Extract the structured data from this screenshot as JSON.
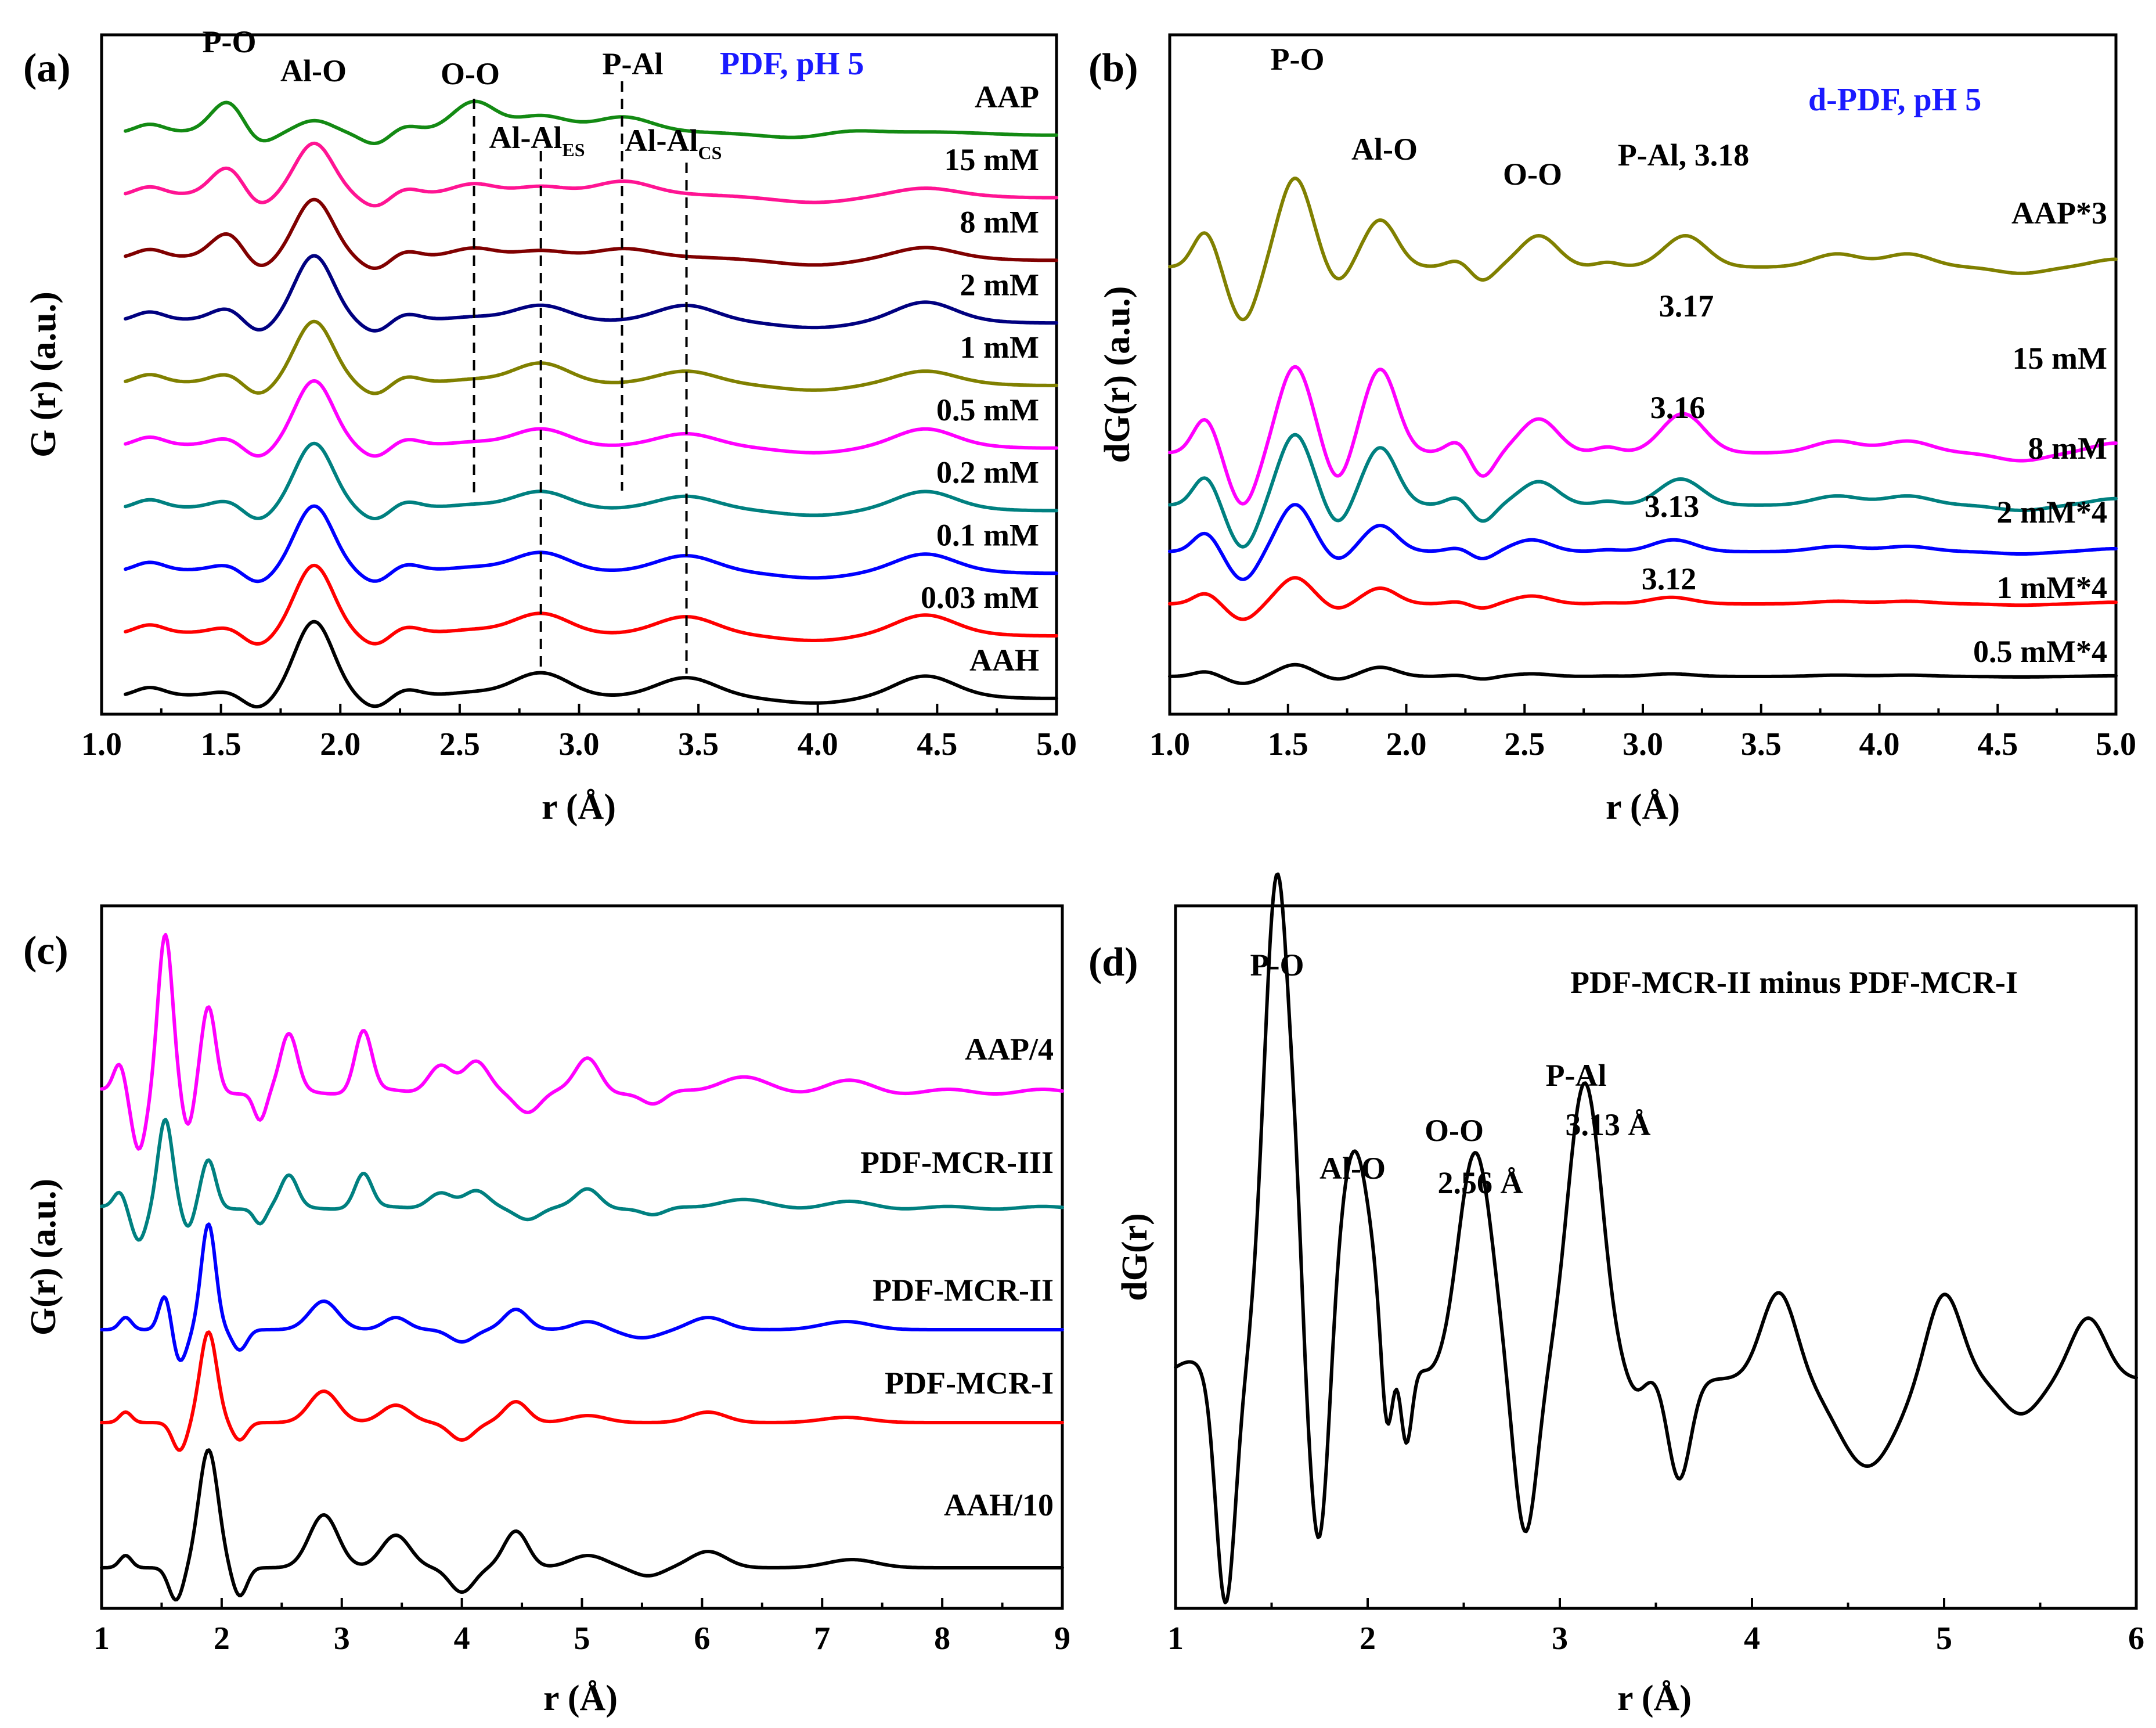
{
  "chart_data": [
    {
      "type": "line",
      "panel": "(a)",
      "title": "PDF, pH 5",
      "xlabel": "r (Å)",
      "ylabel": "G (r) (a.u.)",
      "xlim": [
        1.0,
        5.0
      ],
      "xticks": [
        "1.0",
        "1.5",
        "2.0",
        "2.5",
        "3.0",
        "3.5",
        "4.0",
        "4.5",
        "5.0"
      ],
      "peak_labels": [
        {
          "text": "P-O",
          "r": 1.53
        },
        {
          "text": "Al-O",
          "r": 1.89
        },
        {
          "text": "O-O",
          "r": 2.56
        },
        {
          "text": "P-Al",
          "r": 3.18
        },
        {
          "text": "Al-Al",
          "sub": "ES",
          "r": 2.84
        },
        {
          "text": "Al-Al",
          "sub": "CS",
          "r": 3.45
        }
      ],
      "dashed_lines_r": [
        2.56,
        2.84,
        3.18,
        3.45
      ],
      "series": [
        {
          "name": "AAP",
          "color": "#138a13",
          "amp": [
            1.0,
            0.45,
            0.95,
            0.6,
            0.5,
            0.2
          ],
          "peaks": [
            1.53,
            1.89,
            2.56,
            2.84,
            3.18,
            4.1
          ]
        },
        {
          "name": "15 mM",
          "color": "#ff1493",
          "amp": [
            0.9,
            1.7,
            0.35,
            0.35,
            0.45,
            0.2
          ],
          "peaks": [
            1.53,
            1.89,
            2.56,
            2.84,
            3.18,
            4.45
          ]
        },
        {
          "name": "8 mM",
          "color": "#800000",
          "amp": [
            0.8,
            1.9,
            0.3,
            0.3,
            0.3,
            0.3
          ],
          "peaks": [
            1.53,
            1.89,
            2.56,
            2.84,
            3.18,
            4.45
          ]
        },
        {
          "name": "2 mM",
          "color": "#000080",
          "amp": [
            0.4,
            2.1,
            0.1,
            0.55,
            0.45,
            0.55
          ],
          "peaks": [
            1.53,
            1.89,
            2.56,
            2.84,
            3.45,
            4.45
          ]
        },
        {
          "name": "1 mM",
          "color": "#808000",
          "amp": [
            0.3,
            2.0,
            0.1,
            0.7,
            0.35,
            0.35
          ],
          "peaks": [
            1.53,
            1.89,
            2.56,
            2.84,
            3.45,
            4.45
          ]
        },
        {
          "name": "0.5 mM",
          "color": "#ff00ff",
          "amp": [
            0.25,
            2.1,
            0.1,
            0.6,
            0.35,
            0.5
          ],
          "peaks": [
            1.53,
            1.89,
            2.56,
            2.84,
            3.45,
            4.45
          ]
        },
        {
          "name": "0.2 mM",
          "color": "#008080",
          "amp": [
            0.25,
            2.1,
            0.1,
            0.6,
            0.35,
            0.5
          ],
          "peaks": [
            1.53,
            1.89,
            2.56,
            2.84,
            3.45,
            4.45
          ]
        },
        {
          "name": "0.1 mM",
          "color": "#0000ff",
          "amp": [
            0.2,
            2.1,
            0.1,
            0.65,
            0.45,
            0.5
          ],
          "peaks": [
            1.53,
            1.89,
            2.56,
            2.84,
            3.45,
            4.45
          ]
        },
        {
          "name": "0.03 mM",
          "color": "#ff0000",
          "amp": [
            0.2,
            2.2,
            0.1,
            0.7,
            0.5,
            0.55
          ],
          "peaks": [
            1.53,
            1.89,
            2.56,
            2.84,
            3.45,
            4.45
          ]
        },
        {
          "name": "AAH",
          "color": "#000000",
          "amp": [
            0.15,
            2.4,
            0.1,
            0.8,
            0.55,
            0.6
          ],
          "peaks": [
            1.53,
            1.89,
            2.56,
            2.84,
            3.45,
            4.45
          ]
        }
      ],
      "series_label_suffix": [
        "",
        "",
        "",
        "",
        "",
        "",
        "",
        "",
        "",
        ""
      ]
    },
    {
      "type": "line",
      "panel": "(b)",
      "title": "d-PDF, pH 5",
      "xlabel": "r (Å)",
      "ylabel": "dG(r) (a.u.)",
      "xlim": [
        1.0,
        5.0
      ],
      "xticks": [
        "1.0",
        "1.5",
        "2.0",
        "2.5",
        "3.0",
        "3.5",
        "4.0",
        "4.5",
        "5.0"
      ],
      "peak_labels": [
        {
          "text": "P-O",
          "r": 1.53
        },
        {
          "text": "Al-O",
          "r": 1.89
        },
        {
          "text": "O-O",
          "r": 2.56
        },
        {
          "text": "P-Al, 3.18",
          "r": 3.18
        }
      ],
      "peak_values": [
        "3.17",
        "3.16",
        "3.13",
        "3.12"
      ],
      "series": [
        {
          "name": "AAP*3",
          "color": "#808000",
          "amp": [
            3.4,
            1.8,
            1.2,
            1.2,
            0.5,
            0.5
          ],
          "peaks": [
            1.53,
            1.89,
            2.56,
            3.18,
            3.82,
            4.12
          ]
        },
        {
          "name": "15 mM",
          "color": "#ff00ff",
          "amp": [
            3.3,
            3.2,
            1.3,
            1.5,
            0.45,
            0.45
          ],
          "peaks": [
            1.53,
            1.89,
            2.56,
            3.17,
            3.82,
            4.12
          ]
        },
        {
          "name": "8 mM",
          "color": "#008080",
          "amp": [
            2.7,
            2.2,
            0.9,
            1.0,
            0.35,
            0.35
          ],
          "peaks": [
            1.53,
            1.89,
            2.56,
            3.16,
            3.82,
            4.12
          ]
        },
        {
          "name": "2 mM*4",
          "color": "#0000ff",
          "amp": [
            1.8,
            1.0,
            0.45,
            0.45,
            0.2,
            0.2
          ],
          "peaks": [
            1.53,
            1.89,
            2.53,
            3.13,
            3.82,
            4.12
          ]
        },
        {
          "name": "1 mM*4",
          "color": "#ff0000",
          "amp": [
            1.0,
            0.6,
            0.3,
            0.25,
            0.1,
            0.1
          ],
          "peaks": [
            1.53,
            1.89,
            2.53,
            3.12,
            3.82,
            4.12
          ]
        },
        {
          "name": "0.5 mM*4",
          "color": "#000000",
          "amp": [
            0.45,
            0.35,
            0.1,
            0.1,
            0.05,
            0.05
          ],
          "peaks": [
            1.53,
            1.89,
            2.53,
            3.12,
            3.82,
            4.12
          ]
        }
      ]
    },
    {
      "type": "line",
      "panel": "(c)",
      "xlabel": "r (Å)",
      "ylabel": "G(r) (a.u.)",
      "xlim": [
        1,
        9
      ],
      "xticks": [
        "1",
        "2",
        "3",
        "4",
        "5",
        "6",
        "7",
        "8",
        "9"
      ],
      "series": [
        {
          "name": "AAP/4",
          "color": "#ff00ff"
        },
        {
          "name": "PDF-MCR-III",
          "color": "#008080"
        },
        {
          "name": "PDF-MCR-II",
          "color": "#0000ff"
        },
        {
          "name": "PDF-MCR-I",
          "color": "#ff0000"
        },
        {
          "name": "AAH/10",
          "color": "#000000"
        }
      ]
    },
    {
      "type": "line",
      "panel": "(d)",
      "title": "PDF-MCR-II minus PDF-MCR-I",
      "xlabel": "r (Å)",
      "ylabel": "dG(r)",
      "xlim": [
        1,
        6
      ],
      "xticks": [
        "1",
        "2",
        "3",
        "4",
        "5",
        "6"
      ],
      "peak_labels": [
        {
          "text": "P-O"
        },
        {
          "text": "Al-O"
        },
        {
          "text": "O-O"
        },
        {
          "text": "2.56 Å"
        },
        {
          "text": "P-Al"
        },
        {
          "text": "3.13 Å"
        }
      ],
      "series": [
        {
          "name": "dG(r)",
          "color": "#000000",
          "peaks_r": [
            1.08,
            1.53,
            1.93,
            2.14,
            2.56,
            3.13,
            3.52,
            4.14,
            5.0,
            5.75
          ],
          "peaks_amp": [
            0.1,
            2.9,
            1.3,
            0.15,
            1.3,
            1.7,
            0.05,
            0.5,
            0.5,
            0.35
          ]
        }
      ]
    }
  ]
}
